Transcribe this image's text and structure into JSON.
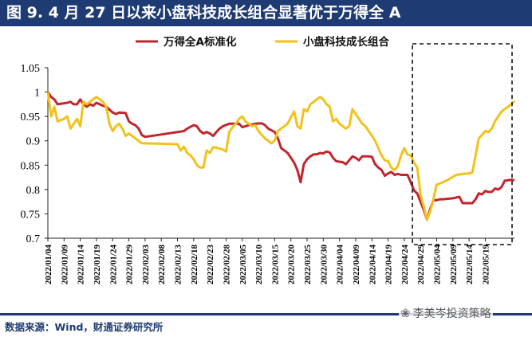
{
  "title": "图 9. 4 月 27 日以来小盘科技成长组合显著优于万得全 A",
  "source": "数据来源：Wind，财通证券研究所",
  "watermark": "李美岑投资策略",
  "colors": {
    "title_bg": "#1f3b73",
    "red": "#c0262d",
    "gold": "#f2c21b"
  },
  "chart_data": {
    "type": "line",
    "title": "",
    "xlabel": "",
    "ylabel": "",
    "ylim": [
      0.7,
      1.05
    ],
    "yticks": [
      "0.7",
      "0.75",
      "0.8",
      "0.85",
      "0.9",
      "0.95",
      "1",
      "1.05"
    ],
    "grid": false,
    "legend_position": "top",
    "x_labels": [
      "2022/01/04",
      "2022/01/09",
      "2022/01/14",
      "2022/01/19",
      "2022/01/24",
      "2022/01/29",
      "2022/02/03",
      "2022/02/08",
      "2022/02/13",
      "2022/02/18",
      "2022/02/23",
      "2022/02/28",
      "2022/03/05",
      "2022/03/10",
      "2022/03/15",
      "2022/03/20",
      "2022/03/25",
      "2022/03/30",
      "2022/04/04",
      "2022/04/09",
      "2022/04/14",
      "2022/04/19",
      "2022/04/24",
      "2022/04/29",
      "2022/05/04",
      "2022/05/09",
      "2022/05/14",
      "2022/05/19"
    ],
    "x_range_days": [
      0,
      144
    ],
    "highlight": {
      "label": "",
      "from_day": 113,
      "to_day": 144
    },
    "series": [
      {
        "name": "万得全A标准化",
        "color": "#c0262d",
        "points": [
          [
            0,
            1.0
          ],
          [
            1,
            0.99
          ],
          [
            2,
            0.985
          ],
          [
            3,
            0.975
          ],
          [
            6,
            0.978
          ],
          [
            7,
            0.98
          ],
          [
            8,
            0.975
          ],
          [
            9,
            0.975
          ],
          [
            10,
            0.985
          ],
          [
            11,
            0.975
          ],
          [
            12,
            0.97
          ],
          [
            13,
            0.975
          ],
          [
            14,
            0.972
          ],
          [
            15,
            0.978
          ],
          [
            17,
            0.972
          ],
          [
            18,
            0.97
          ],
          [
            20,
            0.958
          ],
          [
            21,
            0.955
          ],
          [
            22,
            0.958
          ],
          [
            24,
            0.957
          ],
          [
            25,
            0.94
          ],
          [
            26,
            0.935
          ],
          [
            27,
            0.932
          ],
          [
            28,
            0.925
          ],
          [
            29,
            0.912
          ],
          [
            30,
            0.908
          ],
          [
            35,
            0.913
          ],
          [
            42,
            0.92
          ],
          [
            43,
            0.925
          ],
          [
            45,
            0.932
          ],
          [
            46,
            0.93
          ],
          [
            47,
            0.92
          ],
          [
            48,
            0.915
          ],
          [
            49,
            0.918
          ],
          [
            50,
            0.915
          ],
          [
            51,
            0.91
          ],
          [
            52,
            0.918
          ],
          [
            53,
            0.925
          ],
          [
            54,
            0.93
          ],
          [
            56,
            0.935
          ],
          [
            59,
            0.935
          ],
          [
            60,
            0.928
          ],
          [
            61,
            0.93
          ],
          [
            62,
            0.932
          ],
          [
            64,
            0.935
          ],
          [
            66,
            0.936
          ],
          [
            67,
            0.932
          ],
          [
            68,
            0.925
          ],
          [
            70,
            0.918
          ],
          [
            71,
            0.905
          ],
          [
            72,
            0.885
          ],
          [
            73,
            0.88
          ],
          [
            74,
            0.875
          ],
          [
            75,
            0.865
          ],
          [
            76,
            0.855
          ],
          [
            77,
            0.84
          ],
          [
            78,
            0.815
          ],
          [
            79,
            0.852
          ],
          [
            80,
            0.862
          ],
          [
            81,
            0.868
          ],
          [
            82,
            0.872
          ],
          [
            83,
            0.872
          ],
          [
            84,
            0.875
          ],
          [
            85,
            0.874
          ],
          [
            86,
            0.878
          ],
          [
            87,
            0.876
          ],
          [
            88,
            0.865
          ],
          [
            89,
            0.858
          ],
          [
            91,
            0.856
          ],
          [
            92,
            0.852
          ],
          [
            93,
            0.86
          ],
          [
            94,
            0.868
          ],
          [
            95,
            0.865
          ],
          [
            96,
            0.86
          ],
          [
            97,
            0.868
          ],
          [
            99,
            0.868
          ],
          [
            100,
            0.867
          ],
          [
            101,
            0.852
          ],
          [
            102,
            0.845
          ],
          [
            103,
            0.84
          ],
          [
            104,
            0.828
          ],
          [
            105,
            0.833
          ],
          [
            106,
            0.836
          ],
          [
            107,
            0.83
          ],
          [
            108,
            0.832
          ],
          [
            109,
            0.83
          ],
          [
            111,
            0.83
          ],
          [
            112,
            0.815
          ],
          [
            113,
            0.798
          ],
          [
            114,
            0.792
          ],
          [
            115,
            0.775
          ],
          [
            116,
            0.758
          ],
          [
            117,
            0.738
          ],
          [
            118,
            0.76
          ],
          [
            119,
            0.778
          ],
          [
            120,
            0.778
          ],
          [
            121,
            0.78
          ],
          [
            122,
            0.78
          ],
          [
            125,
            0.782
          ],
          [
            127,
            0.785
          ],
          [
            128,
            0.772
          ],
          [
            129,
            0.772
          ],
          [
            131,
            0.772
          ],
          [
            132,
            0.78
          ],
          [
            133,
            0.792
          ],
          [
            134,
            0.79
          ],
          [
            135,
            0.797
          ],
          [
            136,
            0.795
          ],
          [
            137,
            0.795
          ],
          [
            138,
            0.802
          ],
          [
            139,
            0.8
          ],
          [
            140,
            0.805
          ],
          [
            141,
            0.818
          ],
          [
            143,
            0.82
          ],
          [
            144,
            0.819
          ]
        ]
      },
      {
        "name": "小盘科技成长组合",
        "color": "#f2c21b",
        "points": [
          [
            0,
            1.0
          ],
          [
            1,
            0.95
          ],
          [
            2,
            0.97
          ],
          [
            3,
            0.94
          ],
          [
            5,
            0.945
          ],
          [
            6,
            0.95
          ],
          [
            7,
            0.925
          ],
          [
            8,
            0.935
          ],
          [
            9,
            0.945
          ],
          [
            10,
            0.93
          ],
          [
            11,
            0.98
          ],
          [
            12,
            0.975
          ],
          [
            13,
            0.98
          ],
          [
            14,
            0.985
          ],
          [
            15,
            0.99
          ],
          [
            16,
            0.985
          ],
          [
            17,
            0.98
          ],
          [
            18,
            0.97
          ],
          [
            19,
            0.935
          ],
          [
            20,
            0.92
          ],
          [
            21,
            0.93
          ],
          [
            22,
            0.935
          ],
          [
            23,
            0.925
          ],
          [
            24,
            0.91
          ],
          [
            25,
            0.915
          ],
          [
            26,
            0.91
          ],
          [
            27,
            0.905
          ],
          [
            28,
            0.9
          ],
          [
            29,
            0.895
          ],
          [
            40,
            0.893
          ],
          [
            41,
            0.88
          ],
          [
            42,
            0.888
          ],
          [
            43,
            0.875
          ],
          [
            44,
            0.87
          ],
          [
            45,
            0.862
          ],
          [
            46,
            0.85
          ],
          [
            47,
            0.845
          ],
          [
            48,
            0.845
          ],
          [
            49,
            0.88
          ],
          [
            50,
            0.875
          ],
          [
            51,
            0.887
          ],
          [
            52,
            0.886
          ],
          [
            53,
            0.884
          ],
          [
            54,
            0.882
          ],
          [
            55,
            0.878
          ],
          [
            56,
            0.918
          ],
          [
            57,
            0.928
          ],
          [
            58,
            0.935
          ],
          [
            59,
            0.945
          ],
          [
            60,
            0.95
          ],
          [
            61,
            0.94
          ],
          [
            62,
            0.935
          ],
          [
            63,
            0.93
          ],
          [
            64,
            0.932
          ],
          [
            65,
            0.92
          ],
          [
            66,
            0.912
          ],
          [
            67,
            0.905
          ],
          [
            68,
            0.9
          ],
          [
            69,
            0.895
          ],
          [
            70,
            0.9
          ],
          [
            71,
            0.92
          ],
          [
            72,
            0.925
          ],
          [
            73,
            0.93
          ],
          [
            74,
            0.935
          ],
          [
            75,
            0.948
          ],
          [
            76,
            0.96
          ],
          [
            77,
            0.93
          ],
          [
            78,
            0.925
          ],
          [
            79,
            0.965
          ],
          [
            80,
            0.96
          ],
          [
            81,
            0.975
          ],
          [
            82,
            0.98
          ],
          [
            83,
            0.985
          ],
          [
            84,
            0.99
          ],
          [
            85,
            0.985
          ],
          [
            86,
            0.975
          ],
          [
            87,
            0.97
          ],
          [
            88,
            0.94
          ],
          [
            89,
            0.945
          ],
          [
            90,
            0.935
          ],
          [
            91,
            0.93
          ],
          [
            92,
            0.925
          ],
          [
            93,
            0.93
          ],
          [
            94,
            0.965
          ],
          [
            95,
            0.955
          ],
          [
            96,
            0.945
          ],
          [
            97,
            0.935
          ],
          [
            98,
            0.93
          ],
          [
            99,
            0.92
          ],
          [
            100,
            0.91
          ],
          [
            101,
            0.9
          ],
          [
            102,
            0.885
          ],
          [
            103,
            0.87
          ],
          [
            104,
            0.86
          ],
          [
            105,
            0.858
          ],
          [
            106,
            0.845
          ],
          [
            107,
            0.84
          ],
          [
            108,
            0.848
          ],
          [
            109,
            0.87
          ],
          [
            110,
            0.885
          ],
          [
            111,
            0.872
          ],
          [
            112,
            0.87
          ],
          [
            113,
            0.855
          ],
          [
            114,
            0.845
          ],
          [
            115,
            0.79
          ],
          [
            116,
            0.765
          ],
          [
            117,
            0.738
          ],
          [
            118,
            0.755
          ],
          [
            119,
            0.78
          ],
          [
            120,
            0.81
          ],
          [
            122,
            0.815
          ],
          [
            124,
            0.822
          ],
          [
            126,
            0.83
          ],
          [
            128,
            0.832
          ],
          [
            130,
            0.833
          ],
          [
            131,
            0.835
          ],
          [
            132,
            0.87
          ],
          [
            133,
            0.905
          ],
          [
            134,
            0.912
          ],
          [
            135,
            0.92
          ],
          [
            136,
            0.918
          ],
          [
            137,
            0.925
          ],
          [
            138,
            0.94
          ],
          [
            139,
            0.95
          ],
          [
            140,
            0.96
          ],
          [
            141,
            0.965
          ],
          [
            142,
            0.97
          ],
          [
            143,
            0.975
          ],
          [
            144,
            0.982
          ]
        ]
      }
    ]
  }
}
